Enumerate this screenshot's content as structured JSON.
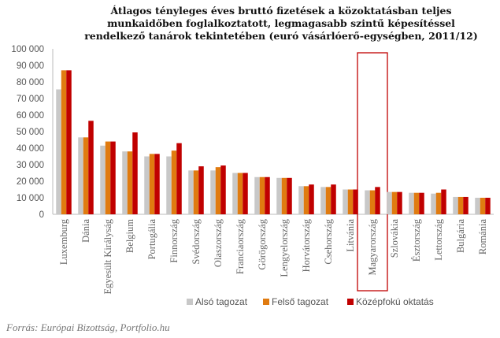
{
  "chart_data": {
    "type": "bar",
    "title_lines": [
      "Átlagos tényleges éves bruttó fizetések a közoktatásban teljes",
      "munkaidőben foglalkoztatott, legmagasabb szintű képesítéssel",
      "rendelkező tanárok tekintetében (euró vásárlóerő-egységben, 2011/12)"
    ],
    "categories": [
      "Luxemburg",
      "Dánia",
      "Egyesült Királyság",
      "Belgium",
      "Portugália",
      "Finnország",
      "Svédország",
      "Olaszország",
      "Franciaország",
      "Görögország",
      "Lengyelország",
      "Horvátország",
      "Csehország",
      "Litvánia",
      "Magyarország",
      "Szlovákia",
      "Észtország",
      "Lettország",
      "Bulgária",
      "Románia"
    ],
    "series": [
      {
        "name": "Alsó tagozat",
        "color": "#c8c8c8",
        "values": [
          75500,
          46500,
          41500,
          38000,
          35000,
          35000,
          26500,
          26500,
          25000,
          22500,
          22000,
          17000,
          16500,
          15000,
          14500,
          13500,
          13000,
          12500,
          10500,
          10000
        ]
      },
      {
        "name": "Felső tagozat",
        "color": "#e07b10",
        "values": [
          87000,
          46500,
          44000,
          38000,
          36500,
          38500,
          26500,
          28500,
          25000,
          22500,
          22000,
          17000,
          16500,
          15000,
          14500,
          13500,
          13000,
          13000,
          10500,
          10000
        ]
      },
      {
        "name": "Középfokú oktatás",
        "color": "#c00000",
        "values": [
          87000,
          56500,
          44000,
          49500,
          36500,
          43000,
          29000,
          29500,
          25000,
          22500,
          22000,
          18000,
          18000,
          15000,
          16500,
          13500,
          13000,
          15000,
          10500,
          10000
        ]
      }
    ],
    "ylim": [
      0,
      100000
    ],
    "ytick_labels": [
      "0",
      "10 000",
      "20 000",
      "30 000",
      "40 000",
      "50 000",
      "60 000",
      "70 000",
      "80 000",
      "90 000",
      "100 000"
    ],
    "grid": false,
    "legend_position": "bottom",
    "highlighted_category": "Magyarország",
    "highlight_color": "#c00000"
  },
  "source": "Forrás: Európai Bizottság, Portfolio.hu"
}
